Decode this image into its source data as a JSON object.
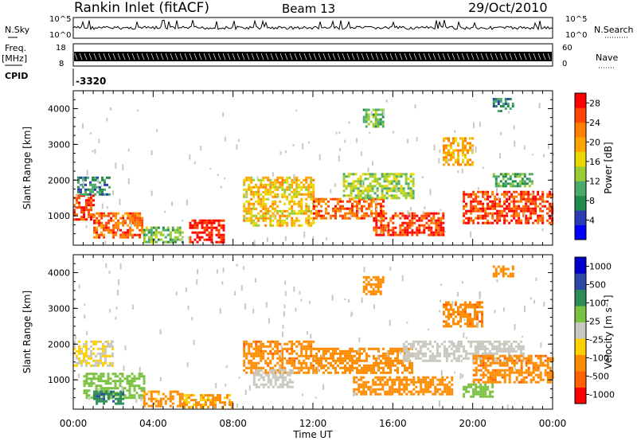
{
  "header": {
    "station": "Rankin Inlet (fitACF)",
    "beam": "Beam 13",
    "date": "29/Oct/2010"
  },
  "strip_panels": {
    "nsky": {
      "label": "N.Sky",
      "right_label": "N.Search",
      "left_ticks": [
        "10^5",
        "10^0"
      ],
      "right_ticks": [
        "10^5",
        "10^0"
      ]
    },
    "freq": {
      "label": "Freq.",
      "unit": "[MHz]",
      "right_label": "Nave",
      "left_ticks": [
        "18",
        "8"
      ],
      "right_ticks": [
        "60",
        "0"
      ]
    },
    "cpid": {
      "label": "CPID",
      "value": "-3320"
    }
  },
  "colors": {
    "power_scale": [
      "#0000ff",
      "#2a3cb4",
      "#228b4c",
      "#4cab6c",
      "#9acd32",
      "#e8d800",
      "#ffa500",
      "#ff7f00",
      "#ff4500",
      "#ff0000"
    ],
    "velocity_scale": [
      "#0000cd",
      "#2a4aa6",
      "#2e8b57",
      "#7cc242",
      "#c8c8c0",
      "#ffd000",
      "#ff8c00",
      "#ff6000",
      "#ff0000"
    ]
  },
  "chart_data": [
    {
      "type": "heatmap",
      "title": "",
      "xlabel": "",
      "ylabel": "Slant Range [km]",
      "x_ticks": [
        "00:00",
        "04:00",
        "08:00",
        "12:00",
        "16:00",
        "20:00",
        "00:00"
      ],
      "y_ticks": [
        "1000",
        "2000",
        "3000",
        "4000"
      ],
      "ylim": [
        180,
        4500
      ],
      "colorbar": {
        "label": "Power [dB]",
        "ticks": [
          "4",
          "8",
          "12",
          "16",
          "20",
          "24",
          "28"
        ],
        "range": [
          0,
          30
        ]
      },
      "bands": [
        {
          "hours": [
            0.0,
            1.0
          ],
          "range_km": [
            900,
            1600
          ],
          "value": 26
        },
        {
          "hours": [
            0.2,
            1.8
          ],
          "range_km": [
            1600,
            2100
          ],
          "value": 8
        },
        {
          "hours": [
            1.0,
            3.5
          ],
          "range_km": [
            400,
            1100
          ],
          "value": 24
        },
        {
          "hours": [
            3.5,
            5.5
          ],
          "range_km": [
            250,
            700
          ],
          "value": 12
        },
        {
          "hours": [
            5.8,
            7.5
          ],
          "range_km": [
            250,
            900
          ],
          "value": 28
        },
        {
          "hours": [
            8.5,
            12.0
          ],
          "range_km": [
            700,
            2100
          ],
          "value": 18
        },
        {
          "hours": [
            12.0,
            15.5
          ],
          "range_km": [
            900,
            1500
          ],
          "value": 24
        },
        {
          "hours": [
            15.0,
            18.5
          ],
          "range_km": [
            450,
            1100
          ],
          "value": 26
        },
        {
          "hours": [
            13.5,
            17.0
          ],
          "range_km": [
            1500,
            2200
          ],
          "value": 14
        },
        {
          "hours": [
            18.5,
            20.0
          ],
          "range_km": [
            2400,
            3200
          ],
          "value": 20
        },
        {
          "hours": [
            19.5,
            24.0
          ],
          "range_km": [
            800,
            1700
          ],
          "value": 26
        },
        {
          "hours": [
            21.0,
            23.0
          ],
          "range_km": [
            1800,
            2200
          ],
          "value": 10
        },
        {
          "hours": [
            14.5,
            15.5
          ],
          "range_km": [
            3500,
            4000
          ],
          "value": 12
        },
        {
          "hours": [
            21.0,
            22.0
          ],
          "range_km": [
            3900,
            4300
          ],
          "value": 8
        }
      ]
    },
    {
      "type": "heatmap",
      "title": "",
      "xlabel": "Time UT",
      "ylabel": "Slant Range [km]",
      "x_ticks": [
        "00:00",
        "04:00",
        "08:00",
        "12:00",
        "16:00",
        "20:00",
        "00:00"
      ],
      "y_ticks": [
        "1000",
        "2000",
        "3000",
        "4000"
      ],
      "ylim": [
        180,
        4500
      ],
      "colorbar": {
        "label": "Velocity [m s⁻¹]",
        "ticks": [
          "1000",
          "500",
          "100",
          "25",
          "-25",
          "-100",
          "-500",
          "-1000"
        ]
      },
      "bands": [
        {
          "hours": [
            0.0,
            2.0
          ],
          "range_km": [
            1400,
            2100
          ],
          "value": -25
        },
        {
          "hours": [
            0.5,
            3.5
          ],
          "range_km": [
            500,
            1200
          ],
          "value": 60
        },
        {
          "hours": [
            1.0,
            2.5
          ],
          "range_km": [
            300,
            700
          ],
          "value": 400
        },
        {
          "hours": [
            3.5,
            5.5
          ],
          "range_km": [
            250,
            700
          ],
          "value": -150
        },
        {
          "hours": [
            5.5,
            8.0
          ],
          "range_km": [
            200,
            600
          ],
          "value": -120
        },
        {
          "hours": [
            8.5,
            12.0
          ],
          "range_km": [
            1200,
            2100
          ],
          "value": -400
        },
        {
          "hours": [
            9.0,
            11.0
          ],
          "range_km": [
            800,
            1300
          ],
          "value": 0
        },
        {
          "hours": [
            12.0,
            17.0
          ],
          "range_km": [
            1200,
            1900
          ],
          "value": -300
        },
        {
          "hours": [
            14.0,
            19.0
          ],
          "range_km": [
            600,
            1100
          ],
          "value": -350
        },
        {
          "hours": [
            16.5,
            22.5
          ],
          "range_km": [
            1500,
            2100
          ],
          "value": 0
        },
        {
          "hours": [
            18.5,
            20.5
          ],
          "range_km": [
            2500,
            3200
          ],
          "value": -400
        },
        {
          "hours": [
            20.0,
            24.0
          ],
          "range_km": [
            900,
            1700
          ],
          "value": -400
        },
        {
          "hours": [
            19.5,
            21.0
          ],
          "range_km": [
            500,
            900
          ],
          "value": 60
        },
        {
          "hours": [
            14.5,
            15.5
          ],
          "range_km": [
            3400,
            3900
          ],
          "value": -300
        },
        {
          "hours": [
            21.0,
            22.0
          ],
          "range_km": [
            3900,
            4200
          ],
          "value": -300
        }
      ]
    }
  ]
}
